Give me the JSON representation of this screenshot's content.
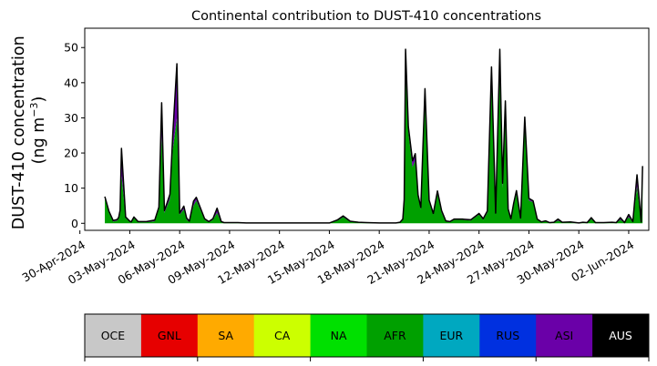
{
  "chart_data": {
    "type": "area",
    "title": "Continental contribution to DUST-410 concentrations",
    "ylabel_line1": "DUST-410 concentration",
    "ylabel_line2": "(ng m",
    "ylabel_sup": "−3",
    "ylabel_close": ")",
    "ylim": [
      -2,
      55.5
    ],
    "yticks": [
      0,
      10,
      20,
      30,
      40,
      50
    ],
    "xlim": [
      "2024-04-30T07:00",
      "2024-06-03T05:00"
    ],
    "xticks": [
      {
        "date": "2024-04-30",
        "label": "30-Apr-2024"
      },
      {
        "date": "2024-05-03",
        "label": "03-May-2024"
      },
      {
        "date": "2024-05-06",
        "label": "06-May-2024"
      },
      {
        "date": "2024-05-09",
        "label": "09-May-2024"
      },
      {
        "date": "2024-05-12",
        "label": "12-May-2024"
      },
      {
        "date": "2024-05-15",
        "label": "15-May-2024"
      },
      {
        "date": "2024-05-18",
        "label": "18-May-2024"
      },
      {
        "date": "2024-05-21",
        "label": "21-May-2024"
      },
      {
        "date": "2024-05-24",
        "label": "24-May-2024"
      },
      {
        "date": "2024-05-27",
        "label": "27-May-2024"
      },
      {
        "date": "2024-05-30",
        "label": "30-May-2024"
      },
      {
        "date": "2024-06-02",
        "label": "02-Jun-2024"
      }
    ],
    "x": [
      "2024-05-01T12:00",
      "2024-05-01T18:00",
      "2024-05-02T00:00",
      "2024-05-02T06:00",
      "2024-05-02T08:00",
      "2024-05-02T10:00",
      "2024-05-02T12:00",
      "2024-05-02T18:00",
      "2024-05-03T00:00",
      "2024-05-03T02:00",
      "2024-05-03T06:00",
      "2024-05-03T12:00",
      "2024-05-04T00:00",
      "2024-05-04T12:00",
      "2024-05-04T18:00",
      "2024-05-04T22:00",
      "2024-05-05T02:00",
      "2024-05-05T06:00",
      "2024-05-05T10:00",
      "2024-05-05T14:00",
      "2024-05-05T20:00",
      "2024-05-06T00:00",
      "2024-05-06T06:00",
      "2024-05-06T10:00",
      "2024-05-06T14:00",
      "2024-05-06T20:00",
      "2024-05-07T00:00",
      "2024-05-07T12:00",
      "2024-05-07T18:00",
      "2024-05-08T00:00",
      "2024-05-08T06:00",
      "2024-05-08T12:00",
      "2024-05-08T16:00",
      "2024-05-08T22:00",
      "2024-05-09T06:00",
      "2024-05-09T12:00",
      "2024-05-10T00:00",
      "2024-05-11T00:00",
      "2024-05-12T00:00",
      "2024-05-13T00:00",
      "2024-05-14T00:00",
      "2024-05-15T00:00",
      "2024-05-15T12:00",
      "2024-05-15T20:00",
      "2024-05-16T06:00",
      "2024-05-16T18:00",
      "2024-05-17T06:00",
      "2024-05-18T00:00",
      "2024-05-19T00:00",
      "2024-05-19T06:00",
      "2024-05-19T10:00",
      "2024-05-19T12:00",
      "2024-05-19T14:00",
      "2024-05-19T18:00",
      "2024-05-20T00:00",
      "2024-05-20T04:00",
      "2024-05-20T08:00",
      "2024-05-20T12:00",
      "2024-05-20T18:00",
      "2024-05-21T00:00",
      "2024-05-21T06:00",
      "2024-05-21T12:00",
      "2024-05-21T18:00",
      "2024-05-22T00:00",
      "2024-05-22T06:00",
      "2024-05-22T12:00",
      "2024-05-23T00:00",
      "2024-05-23T12:00",
      "2024-05-24T00:00",
      "2024-05-24T06:00",
      "2024-05-24T12:00",
      "2024-05-24T18:00",
      "2024-05-25T00:00",
      "2024-05-25T06:00",
      "2024-05-25T10:00",
      "2024-05-25T14:00",
      "2024-05-25T18:00",
      "2024-05-25T22:00",
      "2024-05-26T02:00",
      "2024-05-26T06:00",
      "2024-05-26T12:00",
      "2024-05-26T18:00",
      "2024-05-27T00:00",
      "2024-05-27T06:00",
      "2024-05-27T12:00",
      "2024-05-27T18:00",
      "2024-05-28T00:00",
      "2024-05-28T06:00",
      "2024-05-28T12:00",
      "2024-05-28T18:00",
      "2024-05-29T00:00",
      "2024-05-29T12:00",
      "2024-05-30T00:00",
      "2024-05-30T06:00",
      "2024-05-30T12:00",
      "2024-05-30T18:00",
      "2024-05-31T00:00",
      "2024-05-31T12:00",
      "2024-06-01T00:00",
      "2024-06-01T06:00",
      "2024-06-01T12:00",
      "2024-06-01T18:00",
      "2024-06-02T00:00",
      "2024-06-02T06:00",
      "2024-06-02T12:00",
      "2024-06-02T18:00",
      "2024-06-02T20:00"
    ],
    "series": [
      {
        "name": "AFR",
        "color": "#00a000",
        "values": [
          7.0,
          3.0,
          0.5,
          0.8,
          1.3,
          3.0,
          14.0,
          1.5,
          0.4,
          0.2,
          1.5,
          0.3,
          0.3,
          0.6,
          4.2,
          25.0,
          3.0,
          5.0,
          7.0,
          21.0,
          30.0,
          2.5,
          4.0,
          1.0,
          0.4,
          5.0,
          6.5,
          1.0,
          0.3,
          1.0,
          3.0,
          0.3,
          0.1,
          0.1,
          0.1,
          0.1,
          0.0,
          0.0,
          0.0,
          0.0,
          0.0,
          0.0,
          0.8,
          1.8,
          0.4,
          0.2,
          0.1,
          0.0,
          0.0,
          0.2,
          1.0,
          6.0,
          48.0,
          26.0,
          16.0,
          18.0,
          7.5,
          4.0,
          36.0,
          6.0,
          2.5,
          8.5,
          3.0,
          0.5,
          0.3,
          1.0,
          1.0,
          0.8,
          2.5,
          1.0,
          3.0,
          40.0,
          2.5,
          45.0,
          10.0,
          33.0,
          3.5,
          1.0,
          5.0,
          8.5,
          1.2,
          29.0,
          6.5,
          6.0,
          1.0,
          0.3,
          0.5,
          0.1,
          0.2,
          0.8,
          0.2,
          0.2,
          0.0,
          0.2,
          0.1,
          1.2,
          0.1,
          0.1,
          0.2,
          0.1,
          1.0,
          0.1,
          1.8,
          0.3,
          10.5,
          0.2,
          12.5
        ]
      },
      {
        "name": "ASI",
        "color": "#6a00a8",
        "values": [
          0.5,
          0.3,
          0.2,
          0.2,
          0.3,
          0.6,
          7.0,
          0.2,
          0.1,
          0.1,
          0.2,
          0.1,
          0.1,
          0.2,
          0.3,
          9.0,
          0.5,
          0.8,
          1.2,
          4.0,
          15.0,
          0.3,
          0.8,
          0.4,
          0.1,
          1.2,
          0.8,
          0.2,
          0.1,
          0.2,
          1.2,
          0.1,
          0.0,
          0.0,
          0.0,
          0.0,
          0.0,
          0.0,
          0.0,
          0.0,
          0.0,
          0.0,
          0.1,
          0.2,
          0.1,
          0.0,
          0.0,
          0.0,
          0.0,
          0.0,
          0.1,
          0.5,
          1.2,
          1.2,
          1.5,
          1.5,
          0.5,
          0.4,
          2.0,
          0.5,
          0.2,
          0.5,
          0.5,
          0.1,
          0.1,
          0.1,
          0.1,
          0.1,
          0.2,
          0.2,
          0.3,
          4.0,
          0.3,
          4.0,
          1.2,
          1.5,
          0.5,
          0.2,
          0.5,
          0.6,
          0.2,
          1.0,
          0.5,
          0.3,
          0.1,
          0.0,
          0.1,
          0.0,
          0.0,
          0.3,
          0.0,
          0.1,
          0.0,
          0.0,
          0.0,
          0.3,
          0.0,
          0.0,
          0.0,
          0.0,
          0.5,
          0.0,
          0.6,
          0.1,
          3.0,
          0.1,
          3.5
        ]
      },
      {
        "name": "AUS",
        "color": "#000000",
        "values": [
          0.1,
          0.1,
          0.1,
          0.1,
          0.1,
          0.1,
          0.3,
          0.1,
          0.1,
          0.1,
          0.1,
          0.1,
          0.1,
          0.1,
          0.1,
          0.3,
          0.1,
          0.1,
          0.1,
          0.2,
          0.4,
          0.1,
          0.1,
          0.1,
          0.1,
          0.1,
          0.1,
          0.1,
          0.1,
          0.1,
          0.1,
          0.1,
          0.1,
          0.1,
          0.1,
          0.1,
          0.1,
          0.1,
          0.1,
          0.1,
          0.1,
          0.1,
          0.1,
          0.1,
          0.1,
          0.1,
          0.1,
          0.1,
          0.1,
          0.1,
          0.1,
          0.3,
          0.3,
          0.3,
          0.3,
          0.3,
          0.1,
          0.1,
          0.3,
          0.1,
          0.1,
          0.2,
          0.1,
          0.1,
          0.1,
          0.1,
          0.1,
          0.1,
          0.1,
          0.1,
          0.2,
          0.5,
          0.1,
          0.5,
          0.2,
          0.3,
          0.1,
          0.1,
          0.2,
          0.2,
          0.1,
          0.2,
          0.1,
          0.1,
          0.1,
          0.1,
          0.1,
          0.1,
          0.1,
          0.1,
          0.1,
          0.1,
          0.1,
          0.1,
          0.1,
          0.1,
          0.1,
          0.1,
          0.1,
          0.1,
          0.1,
          0.1,
          0.1,
          0.1,
          0.3,
          0.1,
          0.3
        ]
      }
    ],
    "colorbar": [
      {
        "label": "OCE",
        "color": "#c8c8c8",
        "text_color": "#000000"
      },
      {
        "label": "GNL",
        "color": "#e60000",
        "text_color": "#000000"
      },
      {
        "label": "SA",
        "color": "#ffaa00",
        "text_color": "#000000"
      },
      {
        "label": "CA",
        "color": "#ccff00",
        "text_color": "#000000"
      },
      {
        "label": "NA",
        "color": "#00e000",
        "text_color": "#000000"
      },
      {
        "label": "AFR",
        "color": "#00a000",
        "text_color": "#000000"
      },
      {
        "label": "EUR",
        "color": "#00a8c0",
        "text_color": "#000000"
      },
      {
        "label": "RUS",
        "color": "#0030e0",
        "text_color": "#000000"
      },
      {
        "label": "ASI",
        "color": "#6a00a8",
        "text_color": "#000000"
      },
      {
        "label": "AUS",
        "color": "#000000",
        "text_color": "#ffffff"
      }
    ],
    "grid": false,
    "legend": "bottom"
  }
}
